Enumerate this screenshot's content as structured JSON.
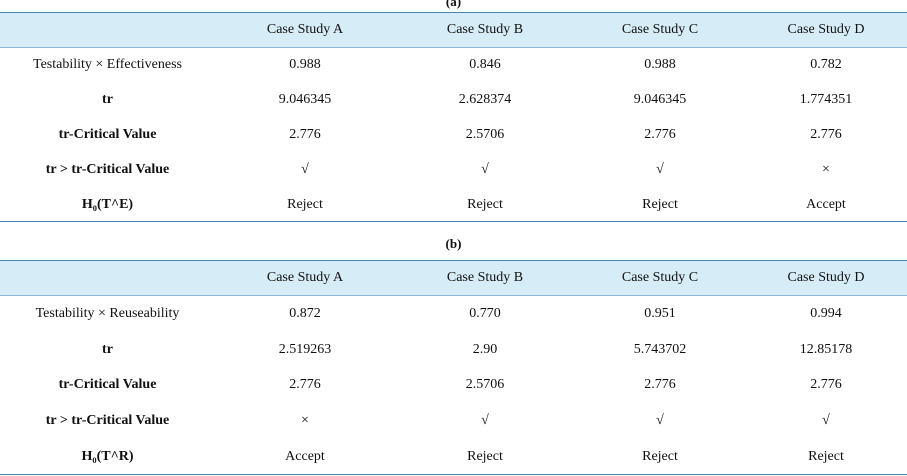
{
  "tables": [
    {
      "caption": "(a)",
      "header": [
        "Case Study A",
        "Case Study B",
        "Case Study C",
        "Case Study D"
      ],
      "rows": [
        [
          "Testability × Effectiveness",
          "0.988",
          "0.846",
          "0.988",
          "0.782"
        ],
        [
          "tr",
          "9.046345",
          "2.628374",
          "9.046345",
          "1.774351"
        ],
        [
          "tr-Critical Value",
          "2.776",
          "2.5706",
          "2.776",
          "2.776"
        ],
        [
          "tr > tr-Critical Value",
          "√",
          "√",
          "√",
          "×"
        ],
        [
          "H₀(T^E)",
          "Reject",
          "Reject",
          "Reject",
          "Accept"
        ]
      ]
    },
    {
      "caption": "(b)",
      "header": [
        "Case Study A",
        "Case Study B",
        "Case Study C",
        "Case Study D"
      ],
      "rows": [
        [
          "Testability × Reuseability",
          "0.872",
          "0.770",
          "0.951",
          "0.994"
        ],
        [
          "tr",
          "2.519263",
          "2.90",
          "5.743702",
          "12.85178"
        ],
        [
          "tr-Critical Value",
          "2.776",
          "2.5706",
          "2.776",
          "2.776"
        ],
        [
          "tr > tr-Critical Value",
          "×",
          "√",
          "√",
          "√"
        ],
        [
          "H₀(T^R)",
          "Accept",
          "Reject",
          "Reject",
          "Reject"
        ]
      ]
    }
  ]
}
